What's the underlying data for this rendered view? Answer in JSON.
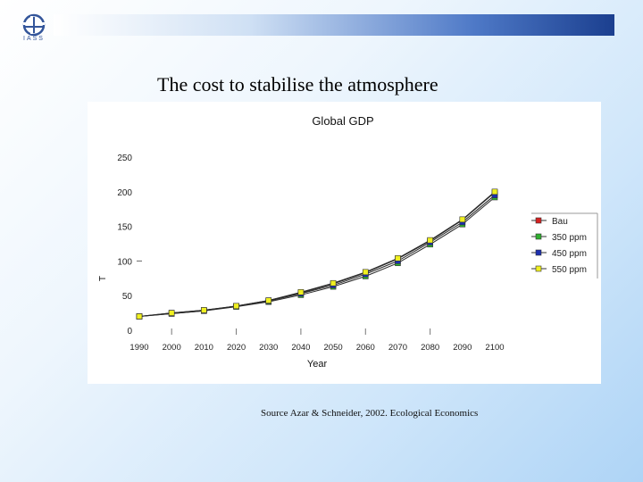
{
  "slide": {
    "title": "The cost to stabilise the atmosphere",
    "source": "Source Azar & Schneider, 2002. Ecological Economics",
    "logo_text": "IASS"
  },
  "colors": {
    "bar_start": "#ffffff",
    "bar_end": "#1b3f8f",
    "Bau": "#d62020",
    "350 ppm": "#2fb02f",
    "450 ppm": "#1b2fb0",
    "550 ppm": "#f0f020"
  },
  "chart_data": {
    "type": "line",
    "title": "Global GDP",
    "xlabel": "Year",
    "ylabel": "T",
    "x": [
      1990,
      2000,
      2010,
      2020,
      2030,
      2040,
      2050,
      2060,
      2070,
      2080,
      2090,
      2100
    ],
    "x_tick_labels": [
      "1990",
      "2000",
      "2010",
      "2020",
      "2030",
      "2040",
      "2050",
      "2060",
      "2070",
      "2080",
      "2090",
      "2100"
    ],
    "y_ticks": [
      0,
      50,
      100,
      150,
      200,
      250
    ],
    "ylim": [
      0,
      250
    ],
    "legend_position": "right",
    "series": [
      {
        "name": "Bau",
        "values": [
          20,
          25,
          29,
          35,
          43,
          54,
          67,
          83,
          103,
          129,
          159,
          199
        ]
      },
      {
        "name": "350 ppm",
        "values": [
          20,
          24,
          28,
          34,
          41,
          51,
          63,
          78,
          97,
          124,
          153,
          192
        ]
      },
      {
        "name": "450 ppm",
        "values": [
          20,
          24,
          28,
          35,
          42,
          53,
          65,
          81,
          100,
          127,
          156,
          195
        ]
      },
      {
        "name": "550 ppm",
        "values": [
          20,
          25,
          29,
          35,
          43,
          55,
          68,
          84,
          104,
          130,
          160,
          200
        ]
      }
    ]
  }
}
